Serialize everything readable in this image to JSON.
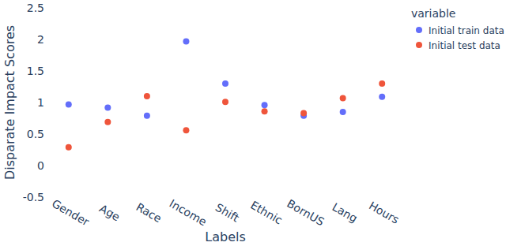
{
  "chart_data": {
    "type": "scatter",
    "x_label": "Labels",
    "y_label": "Disparate Impact Scores",
    "legend_title": "variable",
    "categories": [
      "Gender",
      "Age",
      "Race",
      "Income",
      "Shift",
      "Ethnic",
      "BornUS",
      "Lang",
      "Hours"
    ],
    "series": [
      {
        "name": "Initial train data",
        "color": "#636efa",
        "marker": "circle",
        "values": [
          0.97,
          0.92,
          0.79,
          1.97,
          1.3,
          0.96,
          0.79,
          0.85,
          1.09
        ]
      },
      {
        "name": "Initial test data",
        "color": "#ef553b",
        "marker": "circle",
        "values": [
          0.29,
          0.69,
          1.1,
          0.56,
          1.01,
          0.86,
          0.83,
          1.07,
          1.3
        ]
      }
    ],
    "ylim": [
      -0.5,
      2.5
    ],
    "yticks": [
      -0.5,
      0,
      0.5,
      1,
      1.5,
      2,
      2.5
    ],
    "grid": false,
    "legend": "top-right"
  }
}
